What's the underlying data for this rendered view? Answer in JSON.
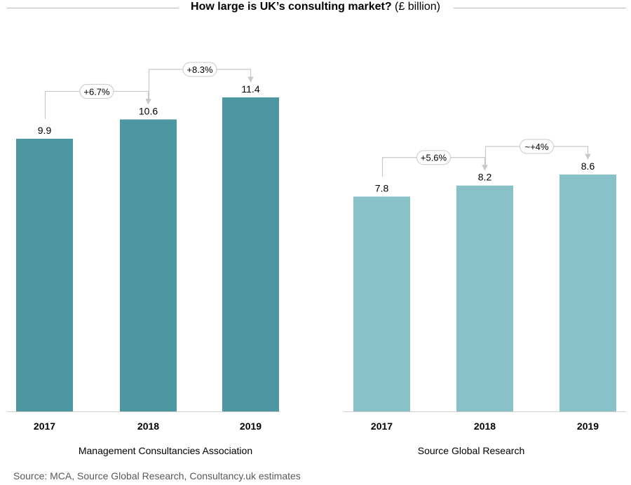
{
  "title": {
    "bold": "How large is UK’s consulting market?",
    "rest": " (£ billion)"
  },
  "source": "Source: MCA, Source Global Research, Consultancy.uk estimates",
  "colors": {
    "panel1_bar": "#4d97a3",
    "panel2_bar": "#88c1c8",
    "connector": "#c9c9c9",
    "axis": "#cfcfcf"
  },
  "chart_data": [
    {
      "type": "bar",
      "title": "Management Consultancies Association",
      "categories": [
        "2017",
        "2018",
        "2019"
      ],
      "values": [
        9.9,
        10.6,
        11.4
      ],
      "value_labels": [
        "9.9",
        "10.6",
        "11.4"
      ],
      "growth": [
        {
          "from": "2017",
          "to": "2018",
          "label": "+6.7%"
        },
        {
          "from": "2018",
          "to": "2019",
          "label": "+8.3%"
        }
      ],
      "color": "#4d97a3"
    },
    {
      "type": "bar",
      "title": "Source Global Research",
      "categories": [
        "2017",
        "2018",
        "2019"
      ],
      "values": [
        7.8,
        8.2,
        8.6
      ],
      "value_labels": [
        "7.8",
        "8.2",
        "8.6"
      ],
      "growth": [
        {
          "from": "2017",
          "to": "2018",
          "label": "+5.6%"
        },
        {
          "from": "2018",
          "to": "2019",
          "label": "~+4%"
        }
      ],
      "color": "#88c1c8"
    }
  ]
}
